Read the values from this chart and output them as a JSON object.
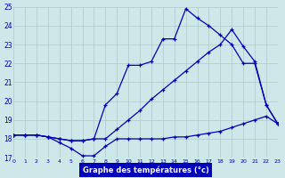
{
  "xlabel": "Graphe des températures (°c)",
  "bg_color": "#cce8e8",
  "grid_color": "#aacccc",
  "line_color": "#0000bb",
  "xlim": [
    0,
    23
  ],
  "ylim": [
    17,
    25
  ],
  "yticks": [
    17,
    18,
    19,
    20,
    21,
    22,
    23,
    24,
    25
  ],
  "xticks": [
    0,
    1,
    2,
    3,
    4,
    5,
    6,
    7,
    8,
    9,
    10,
    11,
    12,
    13,
    14,
    15,
    16,
    17,
    18,
    19,
    20,
    21,
    22,
    23
  ],
  "line1_x": [
    0,
    1,
    2,
    3,
    4,
    5,
    6,
    7,
    8,
    9,
    10,
    11,
    12,
    13,
    14,
    15,
    16,
    17,
    18,
    19,
    20,
    21,
    22,
    23
  ],
  "line1_y": [
    18.2,
    18.2,
    18.2,
    18.1,
    17.8,
    17.5,
    17.1,
    17.1,
    17.6,
    18.0,
    18.0,
    18.0,
    18.0,
    18.0,
    18.1,
    18.1,
    18.2,
    18.3,
    18.4,
    18.6,
    18.8,
    19.0,
    19.2,
    18.8
  ],
  "line2_x": [
    0,
    1,
    2,
    3,
    4,
    5,
    6,
    7,
    8,
    9,
    10,
    11,
    12,
    13,
    14,
    15,
    16,
    17,
    18,
    19,
    20,
    21,
    22,
    23
  ],
  "line2_y": [
    18.2,
    18.2,
    18.2,
    18.1,
    18.0,
    17.9,
    17.9,
    18.0,
    19.8,
    20.4,
    21.9,
    21.9,
    22.1,
    23.3,
    23.3,
    24.9,
    24.4,
    24.0,
    23.5,
    23.0,
    22.0,
    22.0,
    19.8,
    18.8
  ],
  "line3_x": [
    0,
    1,
    2,
    3,
    4,
    5,
    6,
    7,
    8,
    9,
    10,
    11,
    12,
    13,
    14,
    15,
    16,
    17,
    18,
    19,
    20,
    21,
    22,
    23
  ],
  "line3_y": [
    18.2,
    18.2,
    18.2,
    18.1,
    18.0,
    17.9,
    17.9,
    18.0,
    18.0,
    18.5,
    19.0,
    19.5,
    20.1,
    20.6,
    21.1,
    21.6,
    22.1,
    22.6,
    23.0,
    23.8,
    22.9,
    22.1,
    19.8,
    18.8
  ]
}
